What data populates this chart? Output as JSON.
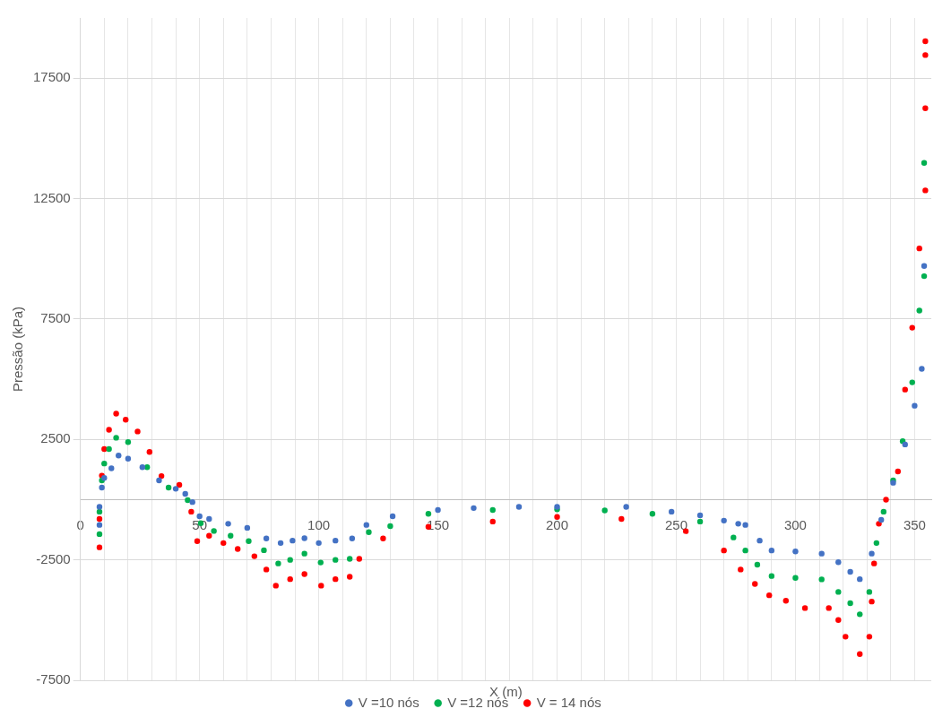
{
  "chart_data": {
    "type": "scatter",
    "xlabel": "X (m)",
    "ylabel": "Pressão (kPa)",
    "xlim": [
      0,
      357
    ],
    "ylim": [
      -7500,
      20000
    ],
    "xticks": [
      0,
      {
        "value": 10,
        "label": null
      },
      {
        "value": 20,
        "label": null
      },
      {
        "value": 30,
        "label": null
      },
      {
        "value": 40,
        "label": null
      },
      50,
      {
        "value": 60,
        "label": null
      },
      {
        "value": 70,
        "label": null
      },
      {
        "value": 80,
        "label": null
      },
      {
        "value": 90,
        "label": null
      },
      100,
      {
        "value": 110,
        "label": null
      },
      {
        "value": 120,
        "label": null
      },
      {
        "value": 130,
        "label": null
      },
      {
        "value": 140,
        "label": null
      },
      150,
      {
        "value": 160,
        "label": null
      },
      {
        "value": 170,
        "label": null
      },
      {
        "value": 180,
        "label": null
      },
      {
        "value": 190,
        "label": null
      },
      200,
      {
        "value": 210,
        "label": null
      },
      {
        "value": 220,
        "label": null
      },
      {
        "value": 230,
        "label": null
      },
      {
        "value": 240,
        "label": null
      },
      250,
      {
        "value": 260,
        "label": null
      },
      {
        "value": 270,
        "label": null
      },
      {
        "value": 280,
        "label": null
      },
      {
        "value": 290,
        "label": null
      },
      300,
      {
        "value": 310,
        "label": null
      },
      {
        "value": 320,
        "label": null
      },
      {
        "value": 330,
        "label": null
      },
      {
        "value": 340,
        "label": null
      },
      350
    ],
    "yticks": [
      -7500,
      -2500,
      2500,
      7500,
      12500,
      17500
    ],
    "grid": true,
    "legend": "bottom",
    "marker": "circle",
    "series": [
      {
        "name": "V =10 nós",
        "color": "#4472c4",
        "x": [
          8,
          8,
          9,
          10,
          13,
          16,
          20,
          26,
          33,
          40,
          44,
          47,
          50,
          54,
          62,
          70,
          78,
          84,
          89,
          94,
          100,
          107,
          114,
          120,
          131,
          150,
          165,
          184,
          200,
          229,
          248,
          260,
          270,
          276,
          279,
          285,
          290,
          300,
          311,
          318,
          323,
          327,
          332,
          336,
          341,
          346,
          350,
          353,
          354
        ],
        "values": [
          -1050,
          -300,
          500,
          900,
          1300,
          1830,
          1700,
          1350,
          800,
          450,
          240,
          -100,
          -690,
          -800,
          -1000,
          -1170,
          -1610,
          -1800,
          -1700,
          -1600,
          -1800,
          -1700,
          -1610,
          -1050,
          -690,
          -430,
          -350,
          -300,
          -300,
          -300,
          -500,
          -650,
          -870,
          -1000,
          -1050,
          -1700,
          -2110,
          -2150,
          -2240,
          -2600,
          -3000,
          -3300,
          -2240,
          -840,
          700,
          2290,
          3900,
          5430,
          9700
        ]
      },
      {
        "name": "V =12 nós",
        "color": "#00b050",
        "x": [
          8,
          8,
          9,
          10,
          12,
          15,
          20,
          28,
          37,
          45,
          50.5,
          56,
          63,
          70.6,
          77,
          83,
          88,
          94,
          100.8,
          107,
          113,
          121,
          130,
          146,
          173,
          200,
          220,
          240,
          260,
          274,
          279,
          284,
          290,
          300,
          311,
          318,
          323,
          327,
          331,
          334,
          337,
          341,
          345,
          349,
          352,
          354,
          354
        ],
        "values": [
          -1430,
          -500,
          800,
          1500,
          2100,
          2570,
          2390,
          1350,
          500,
          -20,
          -980,
          -1300,
          -1500,
          -1720,
          -2100,
          -2650,
          -2500,
          -2240,
          -2610,
          -2500,
          -2460,
          -1350,
          -1100,
          -590,
          -430,
          -400,
          -450,
          -590,
          -910,
          -1570,
          -2110,
          -2700,
          -3170,
          -3250,
          -3310,
          -3830,
          -4300,
          -4760,
          -3830,
          -1800,
          -500,
          800,
          2430,
          4870,
          7850,
          9280,
          13980
        ]
      },
      {
        "name": "V = 14 nós",
        "color": "#ff0000",
        "x": [
          8,
          8,
          9,
          10,
          12,
          15,
          19,
          24,
          29,
          34,
          41.5,
          46.5,
          49,
          54,
          60,
          66,
          73,
          78,
          82,
          88,
          94,
          101,
          107,
          113,
          117,
          127,
          146,
          173,
          200,
          227,
          254,
          270,
          277,
          283,
          289,
          296,
          304,
          314,
          318,
          321,
          327,
          331,
          332,
          333,
          335,
          338,
          343,
          346,
          349,
          352,
          354.5,
          354.5,
          354.5,
          354.5
        ],
        "values": [
          -1980,
          -800,
          1000,
          2100,
          2900,
          3570,
          3320,
          2830,
          1980,
          980,
          610,
          -500,
          -1720,
          -1500,
          -1800,
          -2050,
          -2350,
          -2900,
          -3570,
          -3300,
          -3090,
          -3570,
          -3300,
          -3200,
          -2460,
          -1610,
          -1130,
          -910,
          -720,
          -800,
          -1310,
          -2110,
          -2900,
          -3500,
          -3970,
          -4200,
          -4500,
          -4500,
          -5000,
          -5690,
          -6410,
          -5690,
          -4230,
          -2650,
          -1000,
          0,
          1170,
          4570,
          7140,
          10430,
          12840,
          16250,
          18460,
          19030
        ]
      }
    ]
  }
}
